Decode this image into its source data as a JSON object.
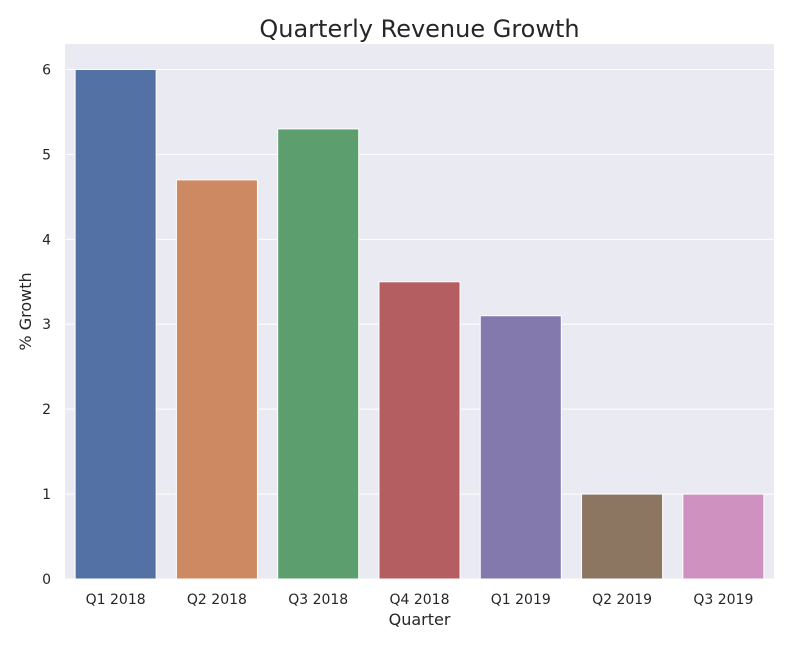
{
  "chart_data": {
    "type": "bar",
    "title": "Quarterly Revenue Growth",
    "xlabel": "Quarter",
    "ylabel": "% Growth",
    "categories": [
      "Q1 2018",
      "Q2 2018",
      "Q3 2018",
      "Q4 2018",
      "Q1 2019",
      "Q2 2019",
      "Q3 2019"
    ],
    "values": [
      6.0,
      4.7,
      5.3,
      3.5,
      3.1,
      1.0,
      1.0
    ],
    "colors": [
      "#5471a5",
      "#cd8962",
      "#5c9e6e",
      "#b55e61",
      "#8479ac",
      "#8c7662",
      "#cf92c0"
    ],
    "ylim": [
      0,
      6.3
    ],
    "yticks": [
      0,
      1,
      2,
      3,
      4,
      5,
      6
    ],
    "grid": true,
    "background": "#eaeaf2",
    "gridline_color": "#ffffff"
  }
}
